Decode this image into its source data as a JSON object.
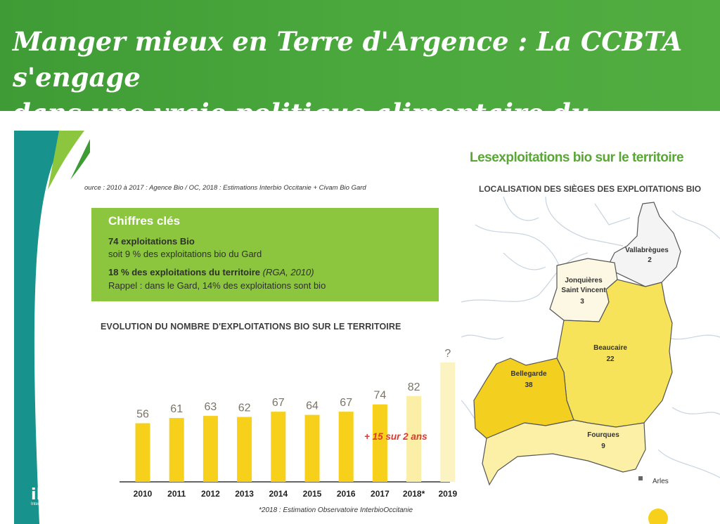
{
  "header": {
    "title_line1": "Manger mieux en Terre d'Argence : La CCBTA s'engage",
    "title_line2": "dans une vraie politique alimentaire du territoire"
  },
  "source": "ource : 2010 à 2017 : Agence Bio / OC, 2018 : Estimations Interbio Occitanie + Civam Bio Gard",
  "key_figures": {
    "title": "Chiffres clés",
    "line1": "74 exploitations Bio",
    "line2": "soit 9 % des exploitations bio du Gard",
    "line3_bold": "18 % des exploitations du territoire",
    "line3_italic": "(RGA, 2010)",
    "line4": "Rappel : dans le Gard, 14% des exploitations sont bio"
  },
  "chart_data": {
    "type": "bar",
    "title": "EVOLUTION DU NOMBRE D'EXPLOITATIONS BIO SUR LE TERRITOIRE",
    "categories": [
      "2010",
      "2011",
      "2012",
      "2013",
      "2014",
      "2015",
      "2016",
      "2017",
      "2018*",
      "2019"
    ],
    "values": [
      56,
      61,
      63,
      62,
      67,
      64,
      67,
      74,
      82,
      null
    ],
    "data_labels": [
      "56",
      "61",
      "63",
      "62",
      "67",
      "64",
      "67",
      "74",
      "82",
      "?"
    ],
    "estimate_note": "*2018 : Estimation Observatoire InterbioOccitanie",
    "annotation": "+ 15 sur 2 ans",
    "colors": {
      "actual": "#f6d01a",
      "estimate": "#fbefa8",
      "future": "#fcf3c2",
      "label": "#7a7466",
      "annotation": "#e2372b"
    }
  },
  "map": {
    "title": "Lesexploitations bio sur le territoire",
    "subtitle": "LOCALISATION DES SIÈGES DES EXPLOITATIONS BIO",
    "communes": [
      {
        "name": "Vallabrègues",
        "count": "2"
      },
      {
        "name_line1": "Jonquières",
        "name_line2": "Saint Vincent",
        "count": "3"
      },
      {
        "name": "Beaucaire",
        "count": "22"
      },
      {
        "name": "Bellegarde",
        "count": "38"
      },
      {
        "name": "Fourques",
        "count": "9"
      }
    ],
    "city_label": "Arles",
    "colors": {
      "vallabregues": "#f4f4f4",
      "jonquieres": "#fcf8e4",
      "beaucaire": "#f7e35a",
      "bellegarde": "#f3cf1f",
      "fourques": "#fbf0a6"
    }
  },
  "logo": {
    "mark": "iBiO",
    "text": "InterBIOOccitanie"
  },
  "brand_colors": {
    "header_green": "#47a23b",
    "keybox_green": "#8cc63f",
    "teal": "#17928c",
    "map_title_green": "#5aa637"
  }
}
